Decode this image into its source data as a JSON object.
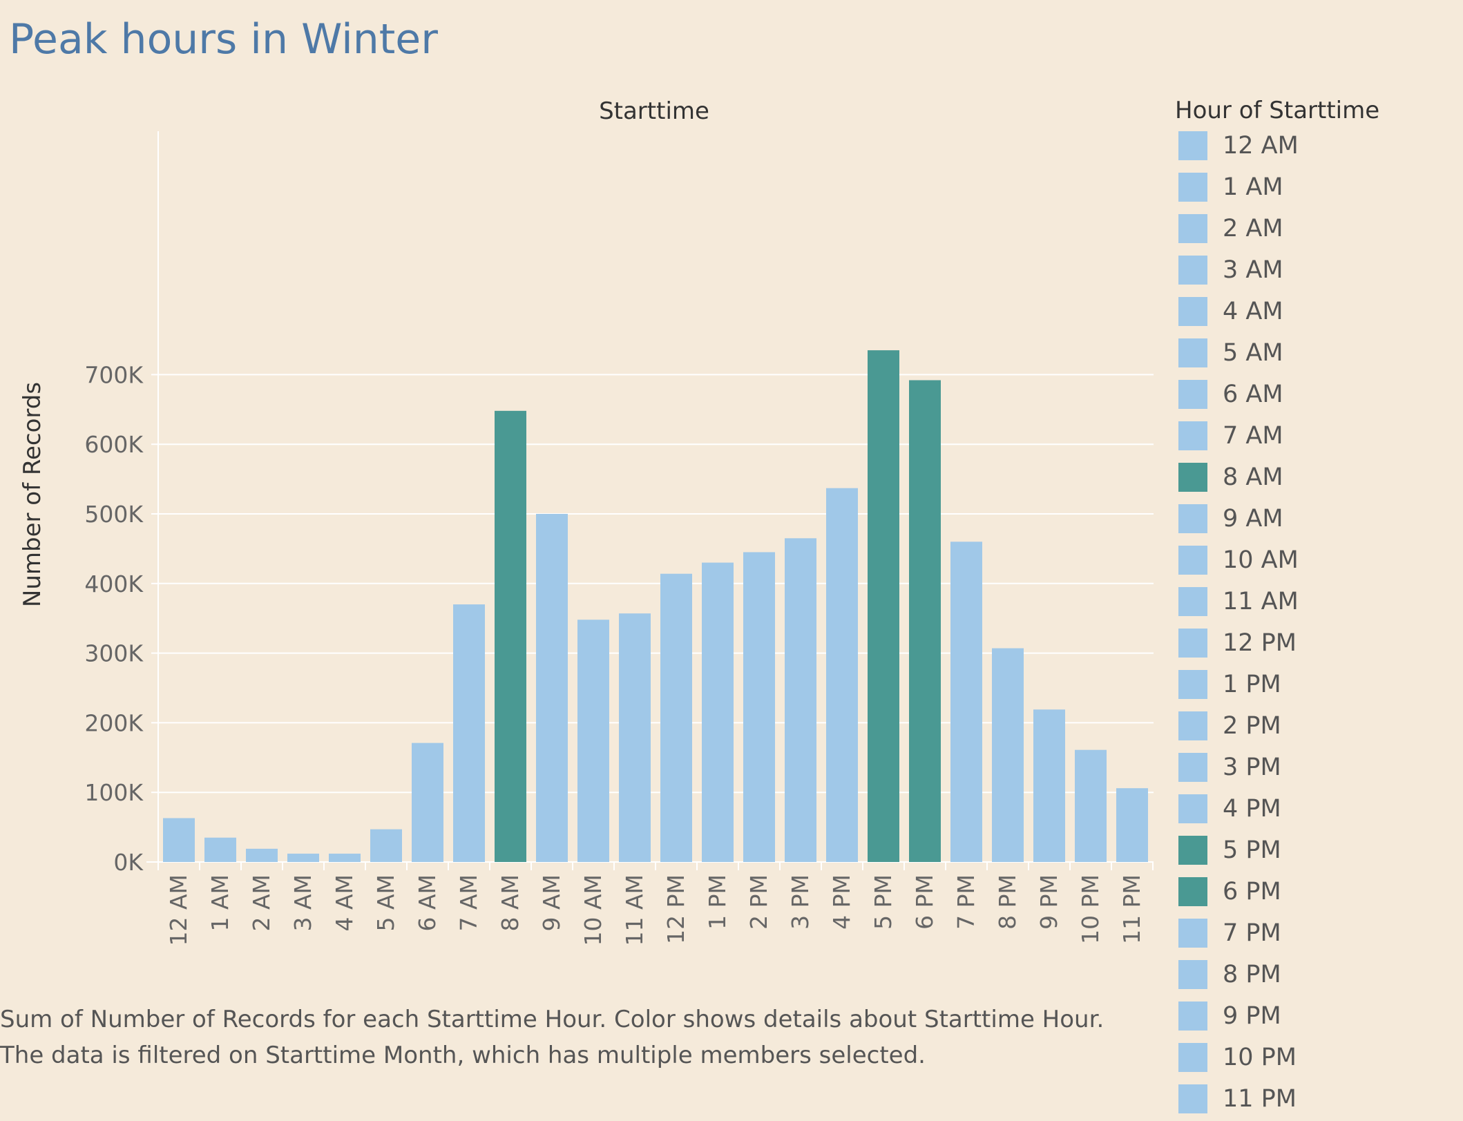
{
  "chart_data": {
    "type": "bar",
    "title": "Peak hours in Winter",
    "column_header": "Starttime",
    "xlabel": "",
    "ylabel": "Number of Records",
    "categories": [
      "12 AM",
      "1 AM",
      "2 AM",
      "3 AM",
      "4 AM",
      "5 AM",
      "6 AM",
      "7 AM",
      "8 AM",
      "9 AM",
      "10 AM",
      "11 AM",
      "12 PM",
      "1 PM",
      "2 PM",
      "3 PM",
      "4 PM",
      "5 PM",
      "6 PM",
      "7 PM",
      "8 PM",
      "9 PM",
      "10 PM",
      "11 PM"
    ],
    "values": [
      63000,
      35000,
      19000,
      12000,
      12000,
      47000,
      171000,
      370000,
      648000,
      500000,
      348000,
      357000,
      414000,
      430000,
      445000,
      465000,
      537000,
      735000,
      692000,
      460000,
      307000,
      219000,
      161000,
      106000
    ],
    "highlighted": [
      "8 AM",
      "5 PM",
      "6 PM"
    ],
    "ylim": [
      0,
      770000
    ],
    "yticks": [
      0,
      100000,
      200000,
      300000,
      400000,
      500000,
      600000,
      700000
    ],
    "ytick_labels": [
      "0K",
      "100K",
      "200K",
      "300K",
      "400K",
      "500K",
      "600K",
      "700K"
    ],
    "grid": "horizontal",
    "colors": {
      "default": "#a0c8e8",
      "highlight": "#4a9993"
    },
    "legend": {
      "title": "Hour of Starttime",
      "placement": "right"
    }
  },
  "caption": {
    "line1": "Sum of Number of Records for each Starttime Hour.  Color shows details about Starttime Hour.",
    "line2": "The data is filtered on Starttime Month, which has multiple members selected."
  }
}
